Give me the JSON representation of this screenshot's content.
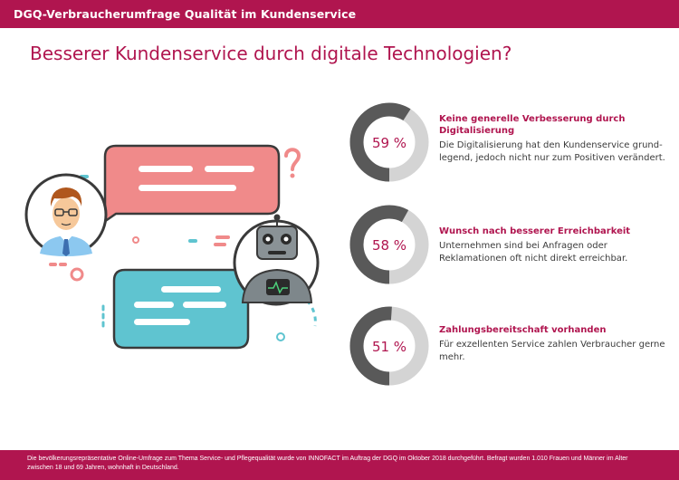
{
  "header": {
    "title": "DGQ-Verbraucherumfrage Qualität im Kundenservice"
  },
  "main": {
    "heading": "Besserer Kundenservice durch digitale Technologien?"
  },
  "colors": {
    "brand": "#b0154f",
    "ring_value": "#595959",
    "ring_rest": "#d4d4d4",
    "bubble_pink": "#f08a8a",
    "bubble_teal": "#5fc4d0"
  },
  "illustration": {
    "icons": [
      "person-avatar-icon",
      "robot-avatar-icon",
      "speech-bubble-icon",
      "question-mark-icon"
    ]
  },
  "chart_data": {
    "type": "pie",
    "unit": "%",
    "items": [
      {
        "value": 59,
        "label": "59 %",
        "heading": "Keine generelle Verbesserung durch Digitalisierung",
        "description": "Die Digitalisierung hat den Kundenservice grund-legend, jedoch nicht nur zum Positiven verändert."
      },
      {
        "value": 58,
        "label": "58 %",
        "heading": "Wunsch nach besserer Erreichbarkeit",
        "description": "Unternehmen sind bei Anfragen oder Reklamationen oft nicht direkt erreichbar."
      },
      {
        "value": 51,
        "label": "51 %",
        "heading": "Zahlungsbereitschaft vorhanden",
        "description": "Für exzellenten Service zahlen Verbraucher gerne mehr."
      }
    ]
  },
  "footer": {
    "text": "Die bevölkerungsrepräsentative Online-Umfrage zum Thema Service- und Pflegequalität wurde von INNOFACT im Auftrag der DGQ im Oktober 2018 durchgeführt. Befragt wurden 1.010 Frauen und Männer im Alter zwischen 18 und 69 Jahren, wohnhaft in Deutschland."
  }
}
